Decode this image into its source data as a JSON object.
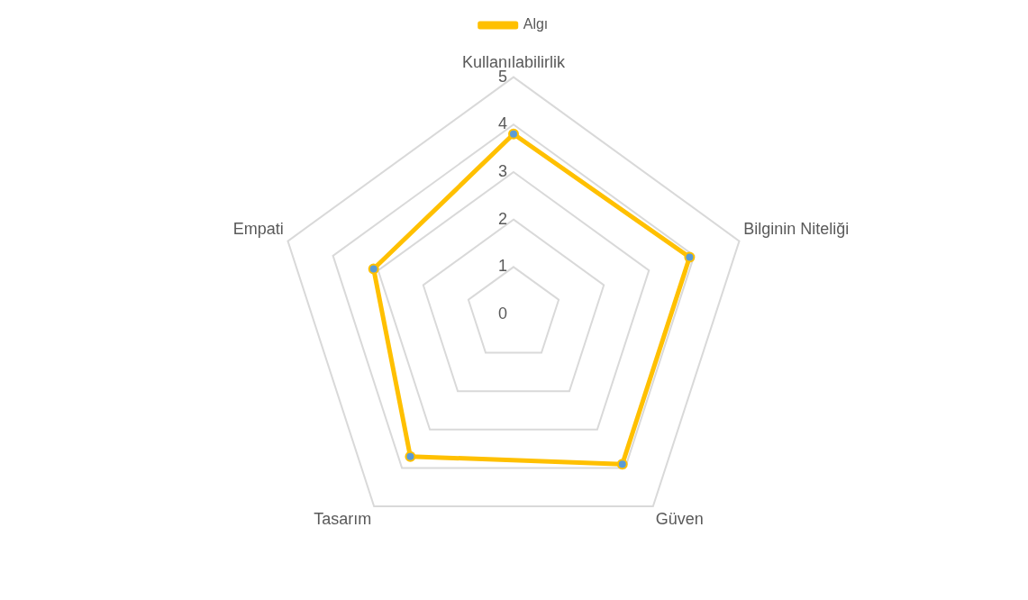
{
  "chart_data": {
    "type": "radar",
    "categories": [
      "Kullanılabilirlik",
      "Bilginin Niteliği",
      "Güven",
      "Tasarım",
      "Empati"
    ],
    "series": [
      {
        "name": "Algı",
        "color": "#ffc000",
        "values": [
          3.8,
          3.9,
          3.9,
          3.7,
          3.1
        ]
      }
    ],
    "ylim": [
      0,
      5
    ],
    "yticks": [
      0,
      1,
      2,
      3,
      4,
      5
    ],
    "grid": true,
    "legend": "top",
    "marker": "circle"
  }
}
